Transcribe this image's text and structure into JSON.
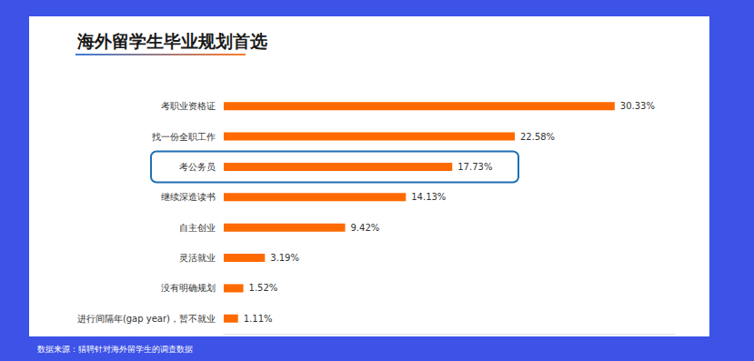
{
  "chart_data": {
    "type": "bar",
    "orientation": "horizontal",
    "title": "海外留学生毕业规划首选",
    "source": "数据来源：猎聘针对海外留学生的调查数据",
    "categories": [
      "考职业资格证",
      "找一份全职工作",
      "考公务员",
      "继续深造读书",
      "自主创业",
      "灵活就业",
      "没有明确规划",
      "进行间隔年(gap year)，暂不就业"
    ],
    "values": [
      30.33,
      22.58,
      17.73,
      14.13,
      9.42,
      3.19,
      1.52,
      1.11
    ],
    "value_labels": [
      "30.33%",
      "22.58%",
      "17.73%",
      "14.13%",
      "9.42%",
      "3.19%",
      "1.52%",
      "1.11%"
    ],
    "color": "#ff6a00",
    "xlim": [
      0,
      35
    ],
    "data_labels": true,
    "tick_labels": "y",
    "grid": false
  }
}
